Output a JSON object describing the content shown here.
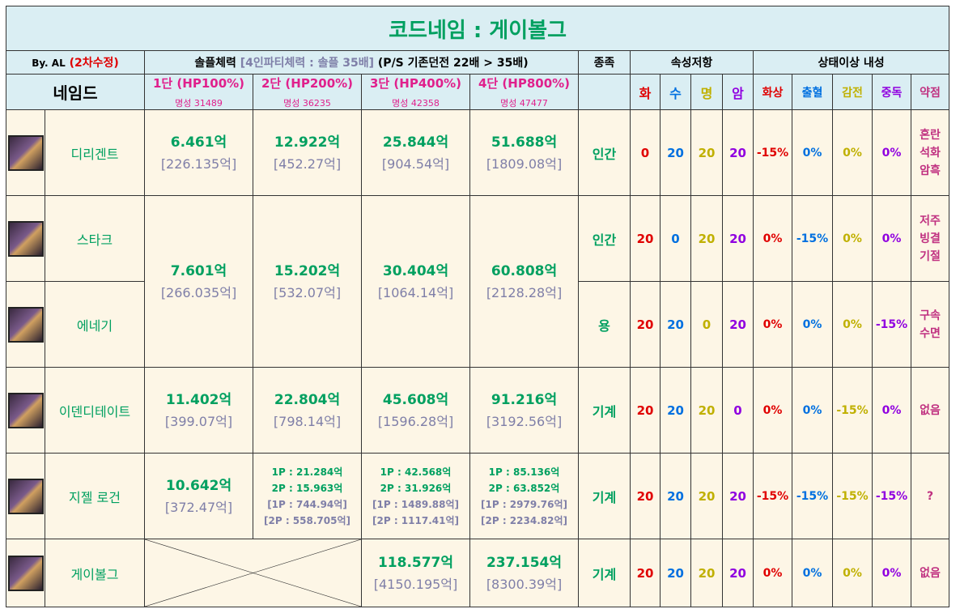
{
  "header": {
    "title": "코드네임 : 게이볼그",
    "author": "By. AL",
    "revision": "(2차수정)",
    "hp_label": "솔플체력",
    "party_note": "[4인파티체력 : 솔플 35배]",
    "ps_note": "(P/S 기존던전 22배 > 35배)",
    "race_label": "종족",
    "resist_label": "속성저항",
    "status_label": "상태이상 내성",
    "named_label": "네임드",
    "stages": [
      {
        "name": "1단 (HP100%)",
        "fame": "명성 31489"
      },
      {
        "name": "2단 (HP200%)",
        "fame": "명성 36235"
      },
      {
        "name": "3단 (HP400%)",
        "fame": "명성 42358"
      },
      {
        "name": "4단 (HP800%)",
        "fame": "명성 47477"
      }
    ],
    "elements": [
      "화",
      "수",
      "명",
      "암"
    ],
    "statuses": [
      "화상",
      "출혈",
      "감전",
      "중독",
      "약점"
    ]
  },
  "rows": [
    {
      "name": "디리겐트",
      "hp": [
        [
          "6.461억",
          "[226.135억]"
        ],
        [
          "12.922억",
          "[452.27억]"
        ],
        [
          "25.844억",
          "[904.54억]"
        ],
        [
          "51.688억",
          "[1809.08억]"
        ]
      ],
      "race": "인간",
      "resist": [
        "0",
        "20",
        "20",
        "20"
      ],
      "status": [
        "-15%",
        "0%",
        "0%",
        "0%"
      ],
      "weakness": [
        "혼란",
        "석화",
        "암흑"
      ]
    },
    {
      "name": "스타크",
      "hp": [
        [
          "7.601억",
          "[266.035억]"
        ],
        [
          "15.202억",
          "[532.07억]"
        ],
        [
          "30.404억",
          "[1064.14억]"
        ],
        [
          "60.808억",
          "[2128.28억]"
        ]
      ],
      "race": "인간",
      "resist": [
        "20",
        "0",
        "20",
        "20"
      ],
      "status": [
        "0%",
        "-15%",
        "0%",
        "0%"
      ],
      "weakness": [
        "저주",
        "빙결",
        "기절"
      ]
    },
    {
      "name": "에네기",
      "race": "용",
      "resist": [
        "20",
        "20",
        "0",
        "20"
      ],
      "status": [
        "0%",
        "0%",
        "0%",
        "-15%"
      ],
      "weakness": [
        "구속",
        "수면"
      ]
    },
    {
      "name": "이덴디테이트",
      "hp": [
        [
          "11.402억",
          "[399.07억]"
        ],
        [
          "22.804억",
          "[798.14억]"
        ],
        [
          "45.608억",
          "[1596.28억]"
        ],
        [
          "91.216억",
          "[3192.56억]"
        ]
      ],
      "race": "기계",
      "resist": [
        "20",
        "20",
        "20",
        "0"
      ],
      "status": [
        "0%",
        "0%",
        "-15%",
        "0%"
      ],
      "weakness": [
        "없음"
      ]
    },
    {
      "name": "지젤 로건",
      "hp": [
        [
          "10.642억",
          "[372.47억]"
        ],
        [
          "1P : 21.284억",
          "2P : 15.963억",
          "[1P : 744.94억]",
          "[2P : 558.705억]"
        ],
        [
          "1P : 42.568억",
          "2P : 31.926억",
          "[1P : 1489.88억]",
          "[2P : 1117.41억]"
        ],
        [
          "1P : 85.136억",
          "2P : 63.852억",
          "[1P : 2979.76억]",
          "[2P : 2234.82억]"
        ]
      ],
      "race": "기계",
      "resist": [
        "20",
        "20",
        "20",
        "20"
      ],
      "status": [
        "-15%",
        "-15%",
        "-15%",
        "-15%"
      ],
      "weakness": [
        "?"
      ]
    },
    {
      "name": "게이볼그",
      "hp": [
        null,
        null,
        [
          "118.577억",
          "[4150.195억]"
        ],
        [
          "237.154억",
          "[8300.39억]"
        ]
      ],
      "race": "기계",
      "resist": [
        "20",
        "20",
        "20",
        "20"
      ],
      "status": [
        "0%",
        "0%",
        "0%",
        "0%"
      ],
      "weakness": [
        "없음"
      ]
    }
  ]
}
